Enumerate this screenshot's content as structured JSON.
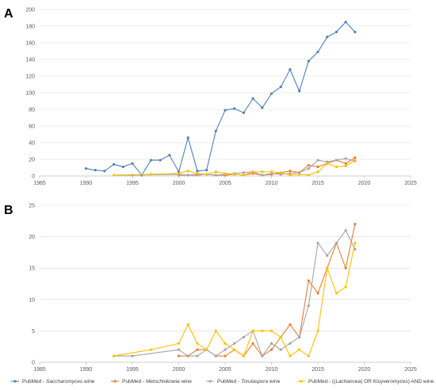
{
  "chart_data": [
    {
      "panel": "A",
      "type": "line",
      "xlim": [
        1985,
        2025
      ],
      "ylim": [
        0,
        200
      ],
      "xticks": [
        1985,
        1990,
        1995,
        2000,
        2005,
        2010,
        2015,
        2020,
        2025
      ],
      "yticks": [
        0,
        20,
        40,
        60,
        80,
        100,
        120,
        140,
        160,
        180,
        200
      ],
      "grid": "horizontal",
      "series": [
        {
          "name": "PubMed - Saccharomyces wine",
          "color": "#4f81bd",
          "x": [
            1990,
            1991,
            1992,
            1993,
            1994,
            1995,
            1996,
            1997,
            1998,
            1999,
            2000,
            2001,
            2002,
            2003,
            2004,
            2005,
            2006,
            2007,
            2008,
            2009,
            2010,
            2011,
            2012,
            2013,
            2014,
            2015,
            2016,
            2017,
            2018,
            2019
          ],
          "y": [
            9,
            7,
            6,
            14,
            11,
            15,
            1,
            19,
            19,
            25,
            5,
            46,
            6,
            7,
            54,
            79,
            81,
            76,
            93,
            82,
            99,
            107,
            128,
            102,
            138,
            149,
            167,
            173,
            185,
            173
          ]
        },
        {
          "name": "PubMed - Metschnikowia wine",
          "color": "#ed7d31",
          "x": [
            2000,
            2001,
            2002,
            2003,
            2004,
            2005,
            2006,
            2007,
            2008,
            2009,
            2010,
            2011,
            2012,
            2013,
            2014,
            2015,
            2016,
            2017,
            2018,
            2019
          ],
          "y": [
            1,
            1,
            2,
            2,
            1,
            1,
            2,
            1,
            3,
            1,
            2,
            4,
            6,
            4,
            13,
            11,
            15,
            19,
            15,
            22
          ]
        },
        {
          "name": "PubMed - Torulaspora wine",
          "color": "#a5a5a5",
          "x": [
            1993,
            1995,
            2000,
            2001,
            2002,
            2003,
            2004,
            2005,
            2006,
            2007,
            2008,
            2009,
            2010,
            2011,
            2012,
            2013,
            2014,
            2015,
            2016,
            2017,
            2018,
            2019
          ],
          "y": [
            1,
            1,
            2,
            1,
            1,
            2,
            1,
            2,
            3,
            4,
            5,
            1,
            3,
            2,
            3,
            4,
            9,
            19,
            17,
            19,
            21,
            18
          ]
        },
        {
          "name": "PubMed - ((Lachancea) OR Kluyveromyces) AND wine",
          "color": "#ffc000",
          "x": [
            1993,
            1997,
            2000,
            2001,
            2002,
            2003,
            2004,
            2005,
            2006,
            2007,
            2008,
            2009,
            2010,
            2011,
            2012,
            2013,
            2014,
            2015,
            2016,
            2017,
            2018,
            2019
          ],
          "y": [
            1,
            2,
            3,
            6,
            3,
            2,
            5,
            3,
            2,
            1,
            5,
            5,
            5,
            4,
            1,
            2,
            1,
            5,
            15,
            11,
            12,
            19
          ]
        }
      ]
    },
    {
      "panel": "B",
      "type": "line",
      "xlim": [
        1985,
        2025
      ],
      "ylim": [
        0,
        25
      ],
      "xticks": [
        1985,
        1990,
        1995,
        2000,
        2005,
        2010,
        2015,
        2020,
        2025
      ],
      "yticks": [
        0,
        5,
        10,
        15,
        20,
        25
      ],
      "grid": "horizontal",
      "series": [
        {
          "name": "PubMed - Metschnikowia wine",
          "color": "#ed7d31",
          "x": [
            2000,
            2001,
            2002,
            2003,
            2004,
            2005,
            2006,
            2007,
            2008,
            2009,
            2010,
            2011,
            2012,
            2013,
            2014,
            2015,
            2016,
            2017,
            2018,
            2019
          ],
          "y": [
            1,
            1,
            2,
            2,
            1,
            1,
            2,
            1,
            3,
            1,
            2,
            4,
            6,
            4,
            13,
            11,
            15,
            19,
            15,
            22
          ]
        },
        {
          "name": "PubMed - Torulaspora wine",
          "color": "#a5a5a5",
          "x": [
            1993,
            1995,
            2000,
            2001,
            2002,
            2003,
            2004,
            2005,
            2006,
            2007,
            2008,
            2009,
            2010,
            2011,
            2012,
            2013,
            2014,
            2015,
            2016,
            2017,
            2018,
            2019
          ],
          "y": [
            1,
            1,
            2,
            1,
            1,
            2,
            1,
            2,
            3,
            4,
            5,
            1,
            3,
            2,
            3,
            4,
            9,
            19,
            17,
            19,
            21,
            18
          ]
        },
        {
          "name": "PubMed - ((Lachancea) OR Kluyveromyces) AND wine",
          "color": "#ffc000",
          "x": [
            1993,
            1997,
            2000,
            2001,
            2002,
            2003,
            2004,
            2005,
            2006,
            2007,
            2008,
            2009,
            2010,
            2011,
            2012,
            2013,
            2014,
            2015,
            2016,
            2017,
            2018,
            2019
          ],
          "y": [
            1,
            2,
            3,
            6,
            3,
            2,
            5,
            3,
            2,
            1,
            5,
            5,
            5,
            4,
            1,
            2,
            1,
            5,
            15,
            11,
            12,
            19
          ]
        }
      ]
    }
  ],
  "legend": {
    "placement": "bottom",
    "items": [
      {
        "prefix": "PubMed - ",
        "italic": "Saccharomyces",
        "suffix": " wine",
        "color": "#4f81bd"
      },
      {
        "prefix": "PubMed - ",
        "italic": "Metschnikowia",
        "suffix": " wine",
        "color": "#ed7d31"
      },
      {
        "prefix": "PubMed - ",
        "italic": "Torulaspora",
        "suffix": " wine",
        "color": "#a5a5a5"
      },
      {
        "prefix": "PubMed - ((",
        "italic": "Lachancea",
        "suffix": ") OR ",
        "italic2": "Kluyveromyces",
        "suffix2": ") AND wine",
        "color": "#ffc000"
      }
    ]
  }
}
